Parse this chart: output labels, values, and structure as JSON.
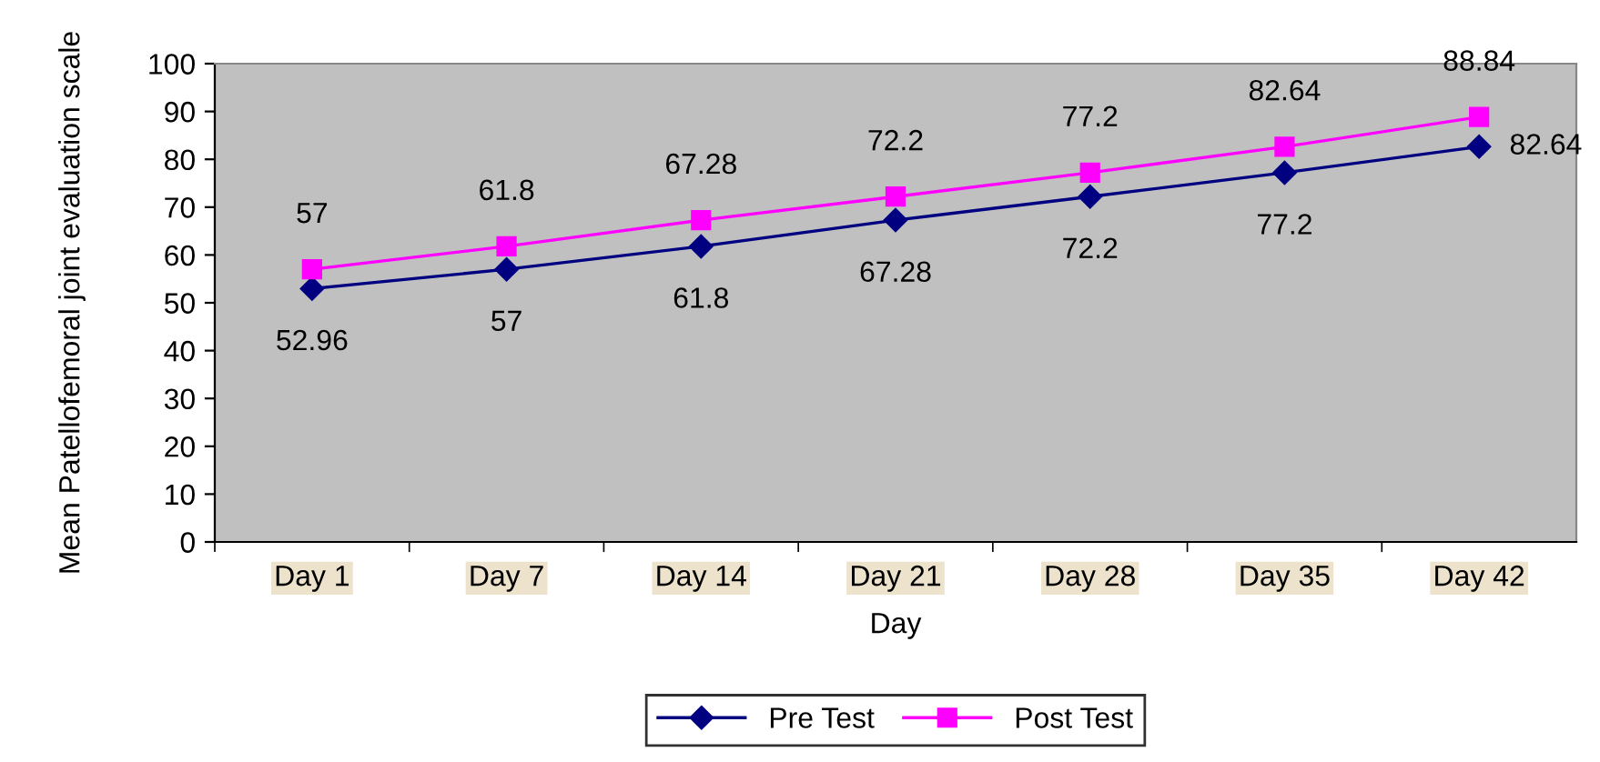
{
  "chart_data": {
    "type": "line",
    "xlabel": "Day",
    "ylabel": "Mean Patellofemoral joint evaluation scale",
    "categories": [
      "Day 1",
      "Day 7",
      "Day 14",
      "Day 21",
      "Day 28",
      "Day 35",
      "Day 42"
    ],
    "series": [
      {
        "name": "Pre Test",
        "color": "#000080",
        "marker": "diamond",
        "values": [
          52.96,
          57,
          61.8,
          67.28,
          72.2,
          77.2,
          82.64
        ]
      },
      {
        "name": "Post Test",
        "color": "#ff00ff",
        "marker": "square",
        "values": [
          57,
          61.8,
          67.28,
          72.2,
          77.2,
          82.64,
          88.84
        ]
      }
    ],
    "ylim": [
      0,
      100
    ],
    "yticks": [
      0,
      10,
      20,
      30,
      40,
      50,
      60,
      70,
      80,
      90,
      100
    ],
    "grid": false,
    "legend": "bottom",
    "data_labels": true,
    "line_style": "solid"
  }
}
